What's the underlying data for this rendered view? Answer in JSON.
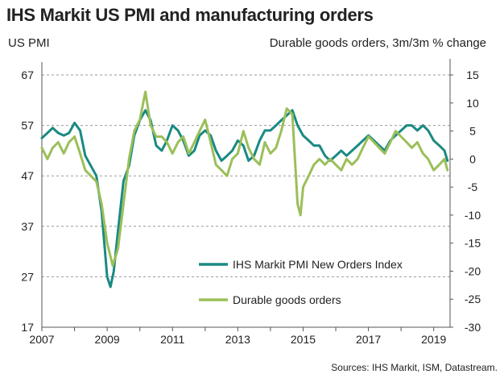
{
  "chart_data": {
    "type": "line",
    "title": "IHS Markit US PMI and manufacturing orders",
    "left_axis_label": "US PMI",
    "right_axis_label": "Durable goods orders, 3m/3m % change",
    "source": "Sources: IHS Markit, ISM, Datastream.",
    "x_ticks": [
      "2007",
      "2009",
      "2011",
      "2013",
      "2015",
      "2017",
      "2019"
    ],
    "x_range": [
      2007,
      2019.5
    ],
    "y_left": {
      "range": [
        17,
        67
      ],
      "ticks": [
        "67",
        "57",
        "47",
        "37",
        "27",
        "17"
      ]
    },
    "y_right": {
      "range": [
        -30,
        15
      ],
      "ticks": [
        "15",
        "10",
        "5",
        "0",
        "-5",
        "-10",
        "-15",
        "-20",
        "-25",
        "-30"
      ]
    },
    "grid": "dashed horizontal lines at left-axis ticks",
    "legend_position": "bottom-center",
    "series": [
      {
        "name": "IHS Markit PMI New Orders Index",
        "axis": "left",
        "color": "#1a8a82",
        "points": [
          [
            2007.0,
            54.5
          ],
          [
            2007.17,
            55.5
          ],
          [
            2007.33,
            56.5
          ],
          [
            2007.5,
            55.5
          ],
          [
            2007.67,
            55
          ],
          [
            2007.83,
            55.5
          ],
          [
            2008.0,
            57.5
          ],
          [
            2008.17,
            56
          ],
          [
            2008.33,
            51
          ],
          [
            2008.5,
            49
          ],
          [
            2008.67,
            47
          ],
          [
            2008.83,
            40
          ],
          [
            2009.0,
            27
          ],
          [
            2009.1,
            25
          ],
          [
            2009.2,
            28
          ],
          [
            2009.33,
            36
          ],
          [
            2009.5,
            46
          ],
          [
            2009.67,
            49
          ],
          [
            2009.83,
            55
          ],
          [
            2010.0,
            58
          ],
          [
            2010.17,
            60
          ],
          [
            2010.33,
            58
          ],
          [
            2010.5,
            53
          ],
          [
            2010.67,
            52
          ],
          [
            2010.83,
            54
          ],
          [
            2011.0,
            57
          ],
          [
            2011.17,
            56
          ],
          [
            2011.33,
            54
          ],
          [
            2011.5,
            51
          ],
          [
            2011.67,
            52
          ],
          [
            2011.83,
            55
          ],
          [
            2012.0,
            56
          ],
          [
            2012.17,
            55
          ],
          [
            2012.33,
            52
          ],
          [
            2012.5,
            50
          ],
          [
            2012.67,
            51
          ],
          [
            2012.83,
            52
          ],
          [
            2013.0,
            54
          ],
          [
            2013.17,
            53
          ],
          [
            2013.33,
            50
          ],
          [
            2013.5,
            51
          ],
          [
            2013.67,
            54
          ],
          [
            2013.83,
            56
          ],
          [
            2014.0,
            56
          ],
          [
            2014.17,
            57
          ],
          [
            2014.33,
            58
          ],
          [
            2014.5,
            59
          ],
          [
            2014.67,
            60
          ],
          [
            2014.83,
            57
          ],
          [
            2015.0,
            55
          ],
          [
            2015.17,
            54
          ],
          [
            2015.33,
            53
          ],
          [
            2015.5,
            53
          ],
          [
            2015.67,
            51
          ],
          [
            2015.83,
            50
          ],
          [
            2016.0,
            51
          ],
          [
            2016.17,
            52
          ],
          [
            2016.33,
            51
          ],
          [
            2016.5,
            52
          ],
          [
            2016.67,
            53
          ],
          [
            2016.83,
            54
          ],
          [
            2017.0,
            55
          ],
          [
            2017.17,
            54
          ],
          [
            2017.33,
            53
          ],
          [
            2017.5,
            52
          ],
          [
            2017.67,
            54
          ],
          [
            2017.83,
            55
          ],
          [
            2018.0,
            56
          ],
          [
            2018.17,
            57
          ],
          [
            2018.33,
            57
          ],
          [
            2018.5,
            56
          ],
          [
            2018.67,
            57
          ],
          [
            2018.83,
            56
          ],
          [
            2019.0,
            54
          ],
          [
            2019.17,
            53
          ],
          [
            2019.33,
            52
          ],
          [
            2019.42,
            50
          ]
        ]
      },
      {
        "name": "Durable goods orders",
        "axis": "right",
        "color": "#9bbf59",
        "points": [
          [
            2007.0,
            2
          ],
          [
            2007.17,
            0
          ],
          [
            2007.33,
            2
          ],
          [
            2007.5,
            3
          ],
          [
            2007.67,
            1
          ],
          [
            2007.83,
            3
          ],
          [
            2008.0,
            4
          ],
          [
            2008.17,
            1
          ],
          [
            2008.33,
            -2
          ],
          [
            2008.5,
            -3
          ],
          [
            2008.67,
            -4
          ],
          [
            2008.83,
            -8
          ],
          [
            2009.0,
            -15
          ],
          [
            2009.17,
            -19
          ],
          [
            2009.33,
            -16
          ],
          [
            2009.5,
            -8
          ],
          [
            2009.67,
            0
          ],
          [
            2009.83,
            5
          ],
          [
            2010.0,
            7
          ],
          [
            2010.17,
            12
          ],
          [
            2010.33,
            6
          ],
          [
            2010.5,
            4
          ],
          [
            2010.67,
            4
          ],
          [
            2010.83,
            3
          ],
          [
            2011.0,
            1
          ],
          [
            2011.17,
            3
          ],
          [
            2011.33,
            4
          ],
          [
            2011.5,
            1
          ],
          [
            2011.67,
            3
          ],
          [
            2011.83,
            5
          ],
          [
            2012.0,
            7
          ],
          [
            2012.17,
            3
          ],
          [
            2012.33,
            -1
          ],
          [
            2012.5,
            -2
          ],
          [
            2012.67,
            -3
          ],
          [
            2012.83,
            0
          ],
          [
            2013.0,
            1
          ],
          [
            2013.17,
            5
          ],
          [
            2013.33,
            2
          ],
          [
            2013.5,
            0
          ],
          [
            2013.67,
            -1
          ],
          [
            2013.83,
            3
          ],
          [
            2014.0,
            1
          ],
          [
            2014.17,
            2
          ],
          [
            2014.33,
            5
          ],
          [
            2014.5,
            9
          ],
          [
            2014.67,
            8
          ],
          [
            2014.83,
            -8
          ],
          [
            2014.92,
            -10
          ],
          [
            2015.0,
            -5
          ],
          [
            2015.17,
            -3
          ],
          [
            2015.33,
            -1
          ],
          [
            2015.5,
            0
          ],
          [
            2015.67,
            -1
          ],
          [
            2015.83,
            0
          ],
          [
            2016.0,
            -1
          ],
          [
            2016.17,
            -2
          ],
          [
            2016.33,
            0
          ],
          [
            2016.5,
            -1
          ],
          [
            2016.67,
            0
          ],
          [
            2016.83,
            2
          ],
          [
            2017.0,
            4
          ],
          [
            2017.17,
            3
          ],
          [
            2017.33,
            2
          ],
          [
            2017.5,
            1
          ],
          [
            2017.67,
            3
          ],
          [
            2017.83,
            5
          ],
          [
            2018.0,
            4
          ],
          [
            2018.17,
            3
          ],
          [
            2018.33,
            2
          ],
          [
            2018.5,
            3
          ],
          [
            2018.67,
            1
          ],
          [
            2018.83,
            0
          ],
          [
            2019.0,
            -2
          ],
          [
            2019.17,
            -1
          ],
          [
            2019.33,
            0
          ],
          [
            2019.42,
            -2
          ]
        ]
      }
    ]
  }
}
